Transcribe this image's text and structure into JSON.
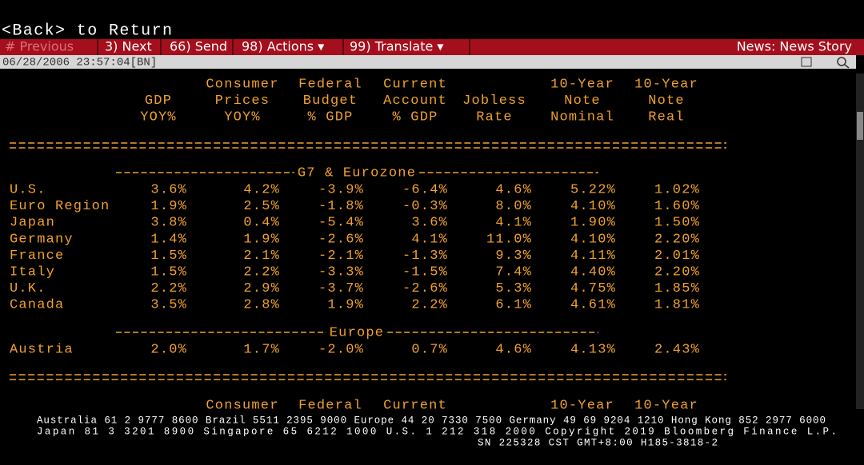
{
  "navigation": {
    "back_hint": "<Back> to Return"
  },
  "toolbar": {
    "items": [
      "# Previous",
      "3) Next",
      "66) Send",
      "98) Actions ▾",
      "99) Translate ▾"
    ],
    "right": "News: News Story"
  },
  "status_bar": {
    "timestamp": "06/28/2006 23:57:04[BN]"
  },
  "table": {
    "headers": [
      [
        "",
        "GDP",
        "YOY%"
      ],
      [
        "Consumer",
        "Prices",
        "YOY%"
      ],
      [
        "Federal",
        "Budget",
        "% GDP"
      ],
      [
        "Current",
        "Account",
        "% GDP"
      ],
      [
        "",
        "Jobless",
        "Rate"
      ],
      [
        "10-Year",
        "Note",
        "Nominal"
      ],
      [
        "10-Year",
        "Note",
        "Real"
      ]
    ],
    "sections": [
      {
        "title": "G7 & Eurozone",
        "rows": [
          [
            "U.S.",
            "3.6%",
            "4.2%",
            "-3.9%",
            "-6.4%",
            "4.6%",
            "5.22%",
            "1.02%"
          ],
          [
            "Euro Region",
            "1.9%",
            "2.5%",
            "-1.8%",
            "-0.3%",
            "8.0%",
            "4.10%",
            "1.60%"
          ],
          [
            "Japan",
            "3.8%",
            "0.4%",
            "-5.4%",
            "3.6%",
            "4.1%",
            "1.90%",
            "1.50%"
          ],
          [
            "Germany",
            "1.4%",
            "1.9%",
            "-2.6%",
            "4.1%",
            "11.0%",
            "4.10%",
            "2.20%"
          ],
          [
            "France",
            "1.5%",
            "2.1%",
            "-2.1%",
            "-1.3%",
            "9.3%",
            "4.11%",
            "2.01%"
          ],
          [
            "Italy",
            "1.5%",
            "2.2%",
            "-3.3%",
            "-1.5%",
            "7.4%",
            "4.40%",
            "2.20%"
          ],
          [
            "U.K.",
            "2.2%",
            "2.9%",
            "-3.7%",
            "-2.6%",
            "5.3%",
            "4.75%",
            "1.85%"
          ],
          [
            "Canada",
            "3.5%",
            "2.8%",
            "1.9%",
            "2.2%",
            "6.1%",
            "4.61%",
            "1.81%"
          ]
        ]
      },
      {
        "title": "Europe",
        "rows": [
          [
            "Austria",
            "2.0%",
            "1.7%",
            "-2.0%",
            "0.7%",
            "4.6%",
            "4.13%",
            "2.43%"
          ]
        ]
      }
    ],
    "next_headers": [
      "Consumer",
      "Federal",
      "Current",
      "10-Year",
      "10-Year"
    ]
  },
  "footer": {
    "lines": [
      "Australia 61 2 9777 8600 Brazil 5511 2395 9000 Europe 44 20 7330 7500 Germany 49 69 9204 1210 Hong Kong 852 2977 6000",
      "Japan 81 3 3201 8900      Singapore 65 6212 1000      U.S. 1 212 318 2000       Copyright 2019 Bloomberg Finance L.P.",
      "SN 225328 CST  GMT+8:00 H185-3818-2"
    ]
  }
}
